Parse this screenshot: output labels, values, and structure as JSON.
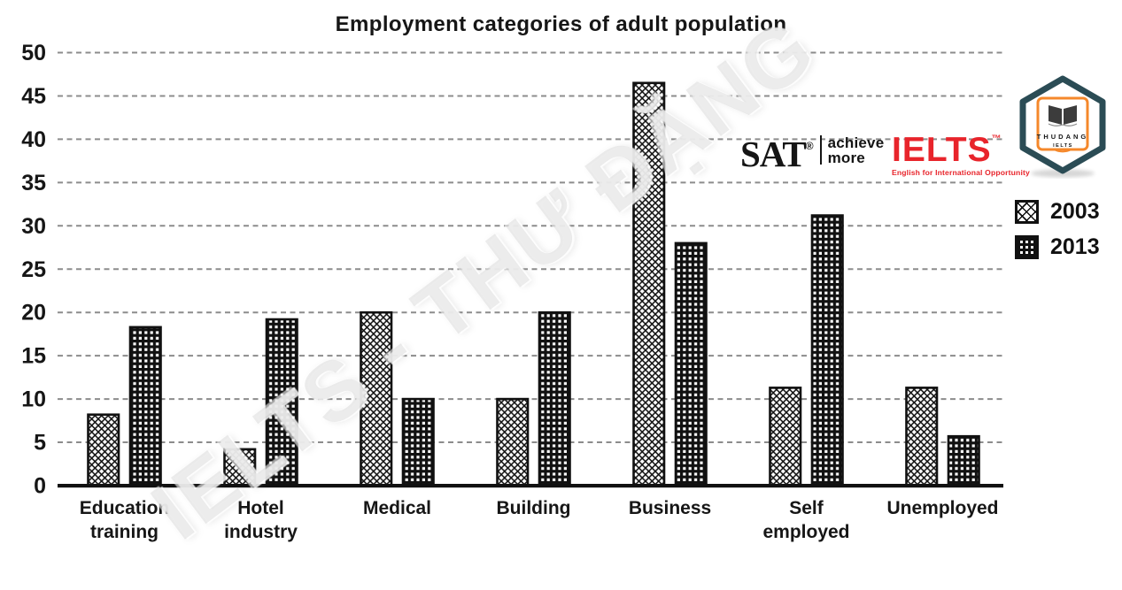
{
  "chart_data": {
    "type": "bar",
    "title": "Employment categories of adult population",
    "xlabel": "",
    "ylabel": "",
    "ylim": [
      0,
      50
    ],
    "yticks": [
      0,
      5,
      10,
      15,
      20,
      25,
      30,
      35,
      40,
      45,
      50
    ],
    "grid": "dashed horizontal",
    "legend_position": "right",
    "categories": [
      "Education training",
      "Hotel industry",
      "Medical",
      "Building",
      "Business",
      "Self employed",
      "Unemployed"
    ],
    "category_lines": [
      [
        "Education",
        "training"
      ],
      [
        "Hotel",
        "industry"
      ],
      [
        "Medical"
      ],
      [
        "Building"
      ],
      [
        "Business"
      ],
      [
        "Self",
        "employed"
      ],
      [
        "Unemployed"
      ]
    ],
    "series": [
      {
        "name": "2003",
        "pattern": "crosshatch",
        "values": [
          8.2,
          4.2,
          20,
          10,
          46.5,
          11.3,
          11.3
        ]
      },
      {
        "name": "2013",
        "pattern": "grid",
        "values": [
          18.3,
          19.2,
          10,
          20,
          28,
          31.2,
          5.7
        ]
      }
    ]
  },
  "watermark": "IELTS - THƯ ĐẶNG",
  "logos": {
    "sat": {
      "text": "SAT",
      "registered": "®",
      "tagline_line1": "achieve",
      "tagline_line2": "more"
    },
    "ielts": {
      "text": "IELTS",
      "tm": "™",
      "subtitle": "English for International Opportunity",
      "color": "#e8242b"
    },
    "badge": {
      "brand": "THUDANG",
      "sub": "IELTS",
      "border_color": "#2b4c55",
      "accent_color": "#f5882b"
    }
  },
  "colors": {
    "bar_stroke": "#111111",
    "gridline": "#8c8c8c",
    "text": "#161616",
    "ielts_red": "#e8242b"
  }
}
